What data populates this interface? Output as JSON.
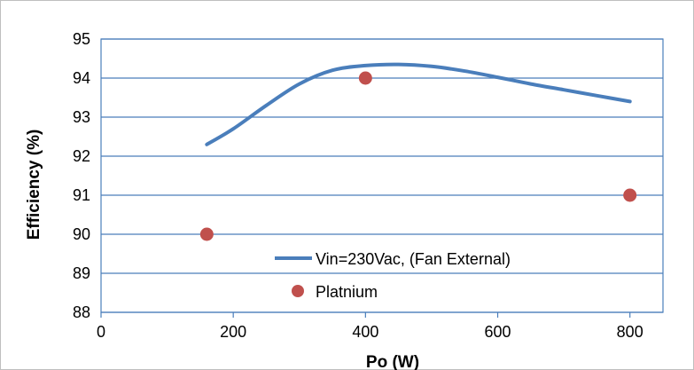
{
  "chart_data": {
    "type": "line",
    "title": "",
    "xlabel": "Po (W)",
    "ylabel": "Efficiency (%)",
    "xlim": [
      0,
      850
    ],
    "ylim": [
      88,
      95
    ],
    "xticks": [
      "0",
      "200",
      "400",
      "600",
      "800"
    ],
    "yticks": [
      "88",
      "89",
      "90",
      "91",
      "92",
      "93",
      "94",
      "95"
    ],
    "grid": true,
    "legend_position": "bottom-right inside",
    "series": [
      {
        "name": "Vin=230Vac, (Fan External)",
        "style": "smooth-line",
        "color": "#4a7ebb",
        "x": [
          160,
          200,
          250,
          300,
          350,
          400,
          450,
          500,
          550,
          600,
          650,
          700,
          750,
          800
        ],
        "y": [
          92.3,
          92.7,
          93.3,
          93.85,
          94.2,
          94.32,
          94.35,
          94.3,
          94.18,
          94.02,
          93.85,
          93.7,
          93.55,
          93.4
        ]
      },
      {
        "name": "Platnium",
        "style": "marker",
        "color": "#c0504d",
        "x": [
          160,
          400,
          800
        ],
        "y": [
          90,
          94,
          91
        ]
      }
    ]
  }
}
